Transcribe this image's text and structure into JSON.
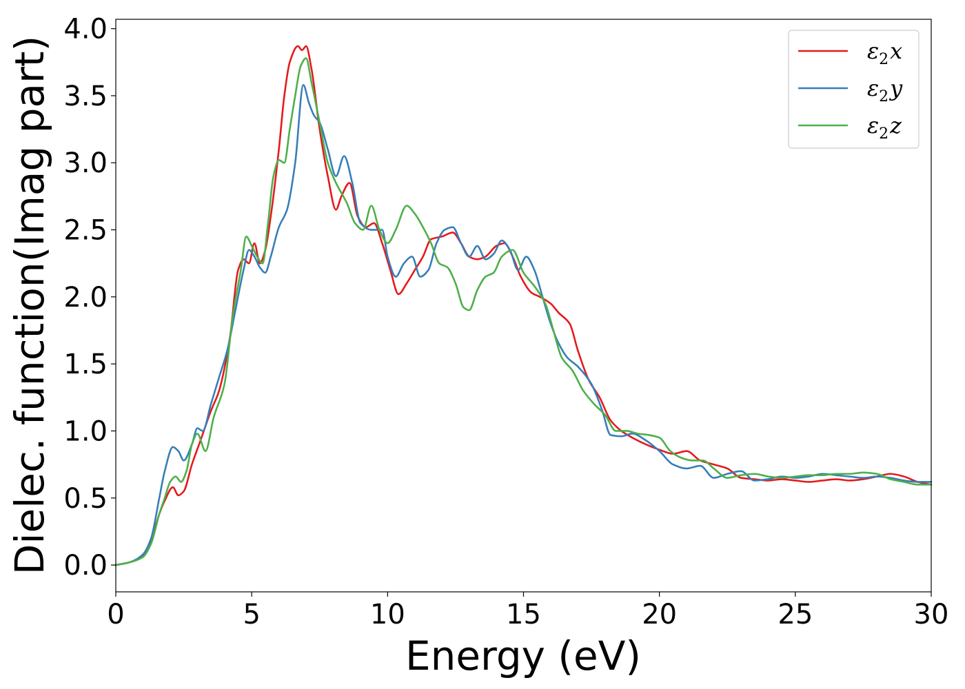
{
  "chart_data": {
    "type": "line",
    "title": "",
    "xlabel": "Energy (eV)",
    "ylabel": "Dielec. function(Imag part)",
    "xlim": [
      0,
      30
    ],
    "ylim": [
      -0.2,
      4.07
    ],
    "xticks": [
      0,
      5,
      10,
      15,
      20,
      25,
      30
    ],
    "xtick_labels": [
      "0",
      "5",
      "10",
      "15",
      "20",
      "25",
      "30"
    ],
    "yticks": [
      0.0,
      0.5,
      1.0,
      1.5,
      2.0,
      2.5,
      3.0,
      3.5,
      4.0
    ],
    "ytick_labels": [
      "0.0",
      "0.5",
      "1.0",
      "1.5",
      "2.0",
      "2.5",
      "3.0",
      "3.5",
      "4.0"
    ],
    "grid": false,
    "legend_position": "top-right",
    "series": [
      {
        "name": "ε2x",
        "legend_base": "ε",
        "legend_sub": "2",
        "legend_var": "x",
        "color": "#e41a1c",
        "x": [
          0,
          0.5,
          1.0,
          1.3,
          1.6,
          1.8,
          2.1,
          2.3,
          2.5,
          2.8,
          3.1,
          3.5,
          3.8,
          4.2,
          4.5,
          4.7,
          4.9,
          5.1,
          5.3,
          5.5,
          5.7,
          6.0,
          6.2,
          6.4,
          6.7,
          6.85,
          7.0,
          7.2,
          7.5,
          7.8,
          8.1,
          8.3,
          8.6,
          8.9,
          9.2,
          9.5,
          9.8,
          10.1,
          10.4,
          10.7,
          11.0,
          11.3,
          11.6,
          12.0,
          12.4,
          12.7,
          13.0,
          13.3,
          13.6,
          14.0,
          14.3,
          14.6,
          14.9,
          15.3,
          15.6,
          16.0,
          16.3,
          16.7,
          17.0,
          17.4,
          17.8,
          18.2,
          18.6,
          19.0,
          19.5,
          20.0,
          20.5,
          21.0,
          21.5,
          22.0,
          22.5,
          23.0,
          23.5,
          24.0,
          24.5,
          25.0,
          25.5,
          26.0,
          26.5,
          27.0,
          27.5,
          28.0,
          28.5,
          29.0,
          29.5,
          30.0
        ],
        "y": [
          0.0,
          0.02,
          0.07,
          0.18,
          0.38,
          0.48,
          0.58,
          0.52,
          0.55,
          0.75,
          0.92,
          1.15,
          1.3,
          1.7,
          2.2,
          2.28,
          2.25,
          2.4,
          2.25,
          2.35,
          2.6,
          3.1,
          3.5,
          3.75,
          3.87,
          3.84,
          3.87,
          3.7,
          3.25,
          2.9,
          2.65,
          2.75,
          2.85,
          2.6,
          2.52,
          2.55,
          2.4,
          2.2,
          2.02,
          2.1,
          2.2,
          2.3,
          2.43,
          2.45,
          2.48,
          2.4,
          2.3,
          2.28,
          2.3,
          2.38,
          2.4,
          2.3,
          2.15,
          2.03,
          2.0,
          1.95,
          1.88,
          1.8,
          1.6,
          1.38,
          1.25,
          1.08,
          1.0,
          0.95,
          0.9,
          0.86,
          0.83,
          0.85,
          0.78,
          0.75,
          0.72,
          0.65,
          0.64,
          0.63,
          0.64,
          0.63,
          0.62,
          0.63,
          0.64,
          0.63,
          0.64,
          0.66,
          0.68,
          0.66,
          0.62,
          0.6
        ]
      },
      {
        "name": "ε2y",
        "legend_base": "ε",
        "legend_sub": "2",
        "legend_var": "y",
        "color": "#377eb8",
        "x": [
          0,
          0.5,
          1.0,
          1.3,
          1.6,
          1.8,
          2.1,
          2.3,
          2.5,
          2.8,
          3.0,
          3.2,
          3.5,
          3.8,
          4.1,
          4.4,
          4.7,
          4.9,
          5.1,
          5.3,
          5.5,
          5.7,
          6.0,
          6.3,
          6.6,
          6.9,
          7.1,
          7.3,
          7.5,
          7.8,
          8.1,
          8.4,
          8.7,
          9.0,
          9.4,
          9.8,
          10.0,
          10.3,
          10.6,
          10.9,
          11.2,
          11.5,
          11.8,
          12.1,
          12.4,
          12.7,
          13.0,
          13.3,
          13.6,
          13.9,
          14.2,
          14.5,
          14.8,
          15.1,
          15.4,
          15.7,
          16.0,
          16.3,
          16.6,
          17.0,
          17.5,
          17.9,
          18.2,
          18.6,
          19.0,
          19.5,
          20.0,
          20.5,
          21.0,
          21.5,
          22.0,
          22.5,
          23.0,
          23.5,
          24.0,
          24.5,
          25.0,
          25.5,
          26.0,
          26.5,
          27.0,
          27.5,
          28.0,
          28.5,
          29.0,
          29.5,
          30.0
        ],
        "y": [
          0.0,
          0.02,
          0.08,
          0.2,
          0.5,
          0.7,
          0.88,
          0.85,
          0.78,
          0.9,
          1.02,
          1.0,
          1.2,
          1.4,
          1.6,
          1.9,
          2.2,
          2.35,
          2.3,
          2.22,
          2.18,
          2.3,
          2.52,
          2.65,
          3.0,
          3.58,
          3.45,
          3.35,
          3.3,
          3.1,
          2.9,
          3.05,
          2.85,
          2.55,
          2.5,
          2.5,
          2.3,
          2.15,
          2.25,
          2.3,
          2.15,
          2.2,
          2.4,
          2.5,
          2.52,
          2.4,
          2.3,
          2.38,
          2.28,
          2.32,
          2.42,
          2.35,
          2.2,
          2.3,
          2.2,
          2.0,
          1.8,
          1.65,
          1.55,
          1.48,
          1.35,
          1.15,
          0.97,
          0.96,
          0.98,
          0.93,
          0.85,
          0.75,
          0.72,
          0.74,
          0.65,
          0.68,
          0.7,
          0.63,
          0.64,
          0.66,
          0.65,
          0.66,
          0.68,
          0.67,
          0.66,
          0.65,
          0.66,
          0.65,
          0.63,
          0.62,
          0.62
        ]
      },
      {
        "name": "ε2z",
        "legend_base": "ε",
        "legend_sub": "2",
        "legend_var": "z",
        "color": "#4daf4a",
        "x": [
          0,
          0.5,
          1.0,
          1.3,
          1.6,
          1.8,
          2.0,
          2.2,
          2.4,
          2.6,
          2.8,
          3.0,
          3.3,
          3.6,
          4.0,
          4.3,
          4.6,
          4.8,
          5.0,
          5.2,
          5.4,
          5.6,
          5.8,
          6.0,
          6.2,
          6.4,
          6.6,
          6.8,
          7.0,
          7.2,
          7.5,
          7.8,
          8.1,
          8.5,
          8.8,
          9.1,
          9.4,
          9.7,
          10.0,
          10.3,
          10.7,
          11.0,
          11.3,
          11.6,
          11.9,
          12.2,
          12.5,
          12.8,
          13.0,
          13.3,
          13.6,
          13.9,
          14.2,
          14.6,
          15.0,
          15.4,
          15.8,
          16.1,
          16.4,
          16.8,
          17.2,
          17.6,
          18.0,
          18.4,
          18.8,
          19.2,
          19.6,
          20.0,
          20.4,
          20.8,
          21.2,
          21.6,
          22.0,
          22.5,
          23.0,
          23.5,
          24.0,
          24.5,
          25.0,
          25.5,
          26.0,
          26.5,
          27.0,
          27.5,
          28.0,
          28.5,
          29.0,
          29.5,
          30.0
        ],
        "y": [
          0.0,
          0.02,
          0.06,
          0.16,
          0.38,
          0.5,
          0.62,
          0.66,
          0.62,
          0.7,
          0.9,
          0.98,
          0.85,
          1.1,
          1.35,
          1.85,
          2.2,
          2.45,
          2.38,
          2.3,
          2.25,
          2.55,
          2.9,
          3.02,
          3.0,
          3.25,
          3.5,
          3.72,
          3.78,
          3.6,
          3.3,
          3.0,
          2.85,
          2.7,
          2.55,
          2.5,
          2.68,
          2.5,
          2.4,
          2.5,
          2.68,
          2.62,
          2.52,
          2.4,
          2.25,
          2.22,
          2.1,
          1.92,
          1.9,
          2.05,
          2.15,
          2.18,
          2.3,
          2.35,
          2.18,
          2.08,
          1.95,
          1.75,
          1.55,
          1.45,
          1.3,
          1.2,
          1.12,
          1.0,
          1.0,
          0.98,
          0.97,
          0.95,
          0.85,
          0.8,
          0.78,
          0.78,
          0.72,
          0.65,
          0.67,
          0.68,
          0.66,
          0.65,
          0.66,
          0.67,
          0.67,
          0.68,
          0.68,
          0.69,
          0.68,
          0.64,
          0.62,
          0.6,
          0.6
        ]
      }
    ]
  }
}
